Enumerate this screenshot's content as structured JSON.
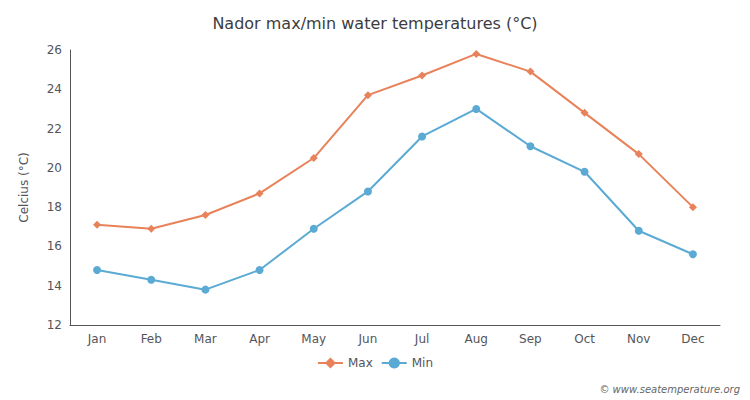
{
  "chart_data": {
    "type": "line",
    "title": "Nador max/min water temperatures (°C)",
    "ylabel": "Celcius (°C)",
    "categories": [
      "Jan",
      "Feb",
      "Mar",
      "Apr",
      "May",
      "Jun",
      "Jul",
      "Aug",
      "Sep",
      "Oct",
      "Nov",
      "Dec"
    ],
    "series": [
      {
        "name": "Max",
        "color": "#E8825A",
        "marker": "diamond",
        "values": [
          17.1,
          16.9,
          17.6,
          18.7,
          20.5,
          23.7,
          24.7,
          25.8,
          24.9,
          22.8,
          20.7,
          18.0
        ]
      },
      {
        "name": "Min",
        "color": "#5BAAD4",
        "marker": "circle",
        "values": [
          14.8,
          14.3,
          13.8,
          14.8,
          16.9,
          18.8,
          21.6,
          23.0,
          21.1,
          19.8,
          16.8,
          15.6
        ]
      }
    ],
    "ylim": [
      12,
      26
    ],
    "yticks": [
      12,
      14,
      16,
      18,
      20,
      22,
      24,
      26
    ],
    "grid": false,
    "legend": "bottom",
    "annotations": [
      "© www.seatemperature.org"
    ]
  }
}
